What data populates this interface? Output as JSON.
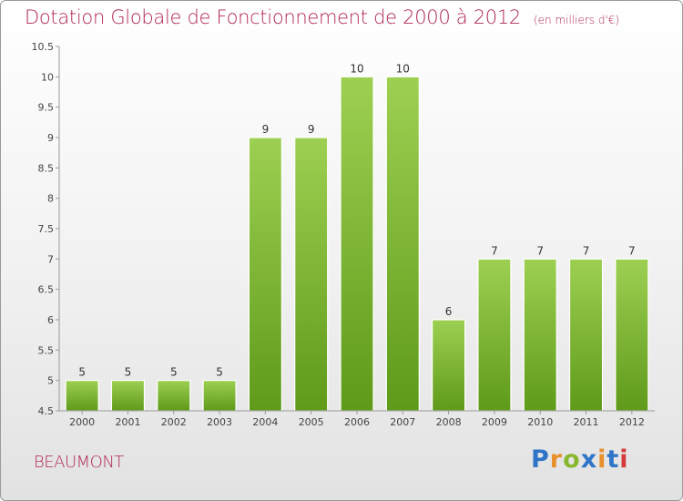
{
  "title": "Dotation Globale de Fonctionnement de 2000 à 2012",
  "unit": "(en milliers d'€)",
  "commune": "BEAUMONT",
  "brand": {
    "letters": [
      "P",
      "r",
      "o",
      "x",
      "i",
      "t",
      "i"
    ],
    "colors": [
      "#2e75c8",
      "#e8902c",
      "#88b82e",
      "#2e75c8",
      "#e8902c",
      "#2e75c8",
      "#d63a3a"
    ]
  },
  "colors": {
    "bar_top": "#9dd052",
    "bar_bottom": "#5f9a1a",
    "title": "#b0285a"
  },
  "chart_data": {
    "type": "bar",
    "title": "Dotation Globale de Fonctionnement de 2000 à 2012",
    "subtitle": "(en milliers d'€)",
    "categories": [
      "2000",
      "2001",
      "2002",
      "2003",
      "2004",
      "2005",
      "2006",
      "2007",
      "2008",
      "2009",
      "2010",
      "2011",
      "2012"
    ],
    "values": [
      5,
      5,
      5,
      5,
      9,
      9,
      10,
      10,
      6,
      7,
      7,
      7,
      7
    ],
    "data_labels": [
      "5",
      "5",
      "5",
      "5",
      "9",
      "9",
      "10",
      "10",
      "6",
      "7",
      "7",
      "7",
      "7"
    ],
    "ylim": [
      4.5,
      10.5
    ],
    "yticks": [
      "4.5",
      "5",
      "5.5",
      "6",
      "6.5",
      "7",
      "7.5",
      "8",
      "8.5",
      "9",
      "9.5",
      "10",
      "10.5"
    ],
    "grid": false,
    "legend": "none"
  }
}
